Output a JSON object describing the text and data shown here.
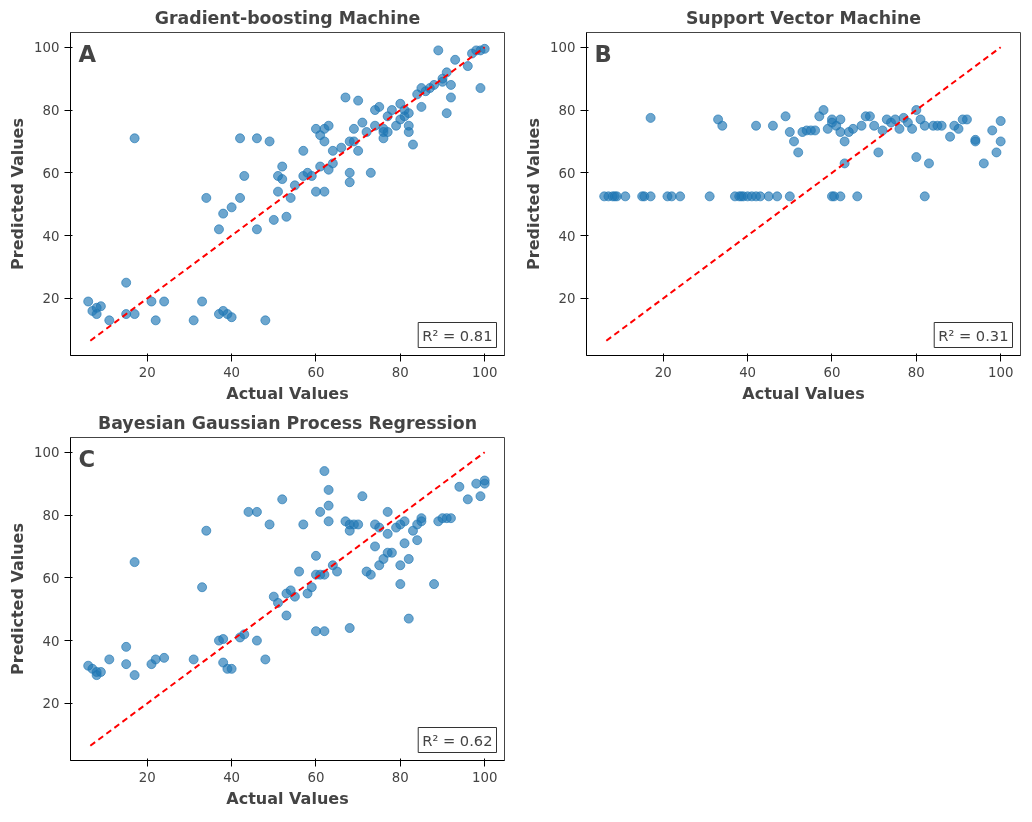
{
  "chart_data": [
    {
      "type": "scatter",
      "title": "Gradient-boosting Machine",
      "xlabel": "Actual Values",
      "ylabel": "Predicted Values",
      "xlim": [
        1.8,
        104.7
      ],
      "ylim": [
        1.8,
        104.7
      ],
      "xticks": [
        20,
        40,
        60,
        80,
        100
      ],
      "yticks": [
        20,
        40,
        60,
        80,
        100
      ],
      "grid": false,
      "annotations": [
        "A",
        "R² = 0.81"
      ],
      "series": [
        {
          "marker": "circle",
          "color": "#1f77b4",
          "x": [
            6,
            7,
            8,
            8,
            9,
            11,
            15,
            15,
            17,
            17,
            21,
            22,
            24,
            31,
            33,
            37,
            38,
            39,
            40,
            48,
            34,
            37,
            38,
            40,
            42,
            42,
            43,
            46,
            46,
            49,
            50,
            51,
            51,
            52,
            52,
            53,
            54,
            55,
            57,
            57,
            58,
            59,
            60,
            60,
            61,
            61,
            62,
            62,
            62,
            63,
            63,
            64,
            64,
            66,
            67,
            68,
            68,
            68,
            69,
            69,
            70,
            70,
            71,
            72,
            73,
            74,
            74,
            75,
            76,
            76,
            76,
            77,
            77,
            78,
            79,
            80,
            80,
            81,
            81,
            82,
            82,
            82,
            83,
            84,
            85,
            85,
            86,
            87,
            88,
            89,
            90,
            90,
            91,
            91,
            92,
            92,
            93,
            96,
            97,
            98,
            99,
            100,
            99
          ],
          "values": [
            19,
            16,
            15,
            17,
            17.5,
            13,
            15,
            25,
            15,
            71,
            19,
            13,
            19,
            13,
            19,
            15,
            16,
            15,
            14,
            13,
            52,
            42,
            47,
            49,
            52,
            71,
            59,
            71,
            42,
            70,
            45,
            54,
            59,
            62,
            58,
            46,
            52,
            56,
            67,
            59,
            60,
            59,
            54,
            74,
            62,
            72,
            74,
            70,
            54,
            61,
            75,
            67,
            63,
            68,
            84,
            70,
            60,
            57,
            70,
            74,
            83,
            67,
            76,
            73,
            60,
            75,
            80,
            81,
            73,
            74,
            71,
            78,
            73,
            80,
            75,
            82,
            77,
            80,
            78,
            79,
            75,
            73,
            69,
            85,
            81,
            87,
            86,
            87,
            88,
            99,
            89,
            90,
            92,
            79,
            88,
            84,
            96,
            94,
            98,
            99,
            87,
            99.5,
            99
          ]
        },
        {
          "type": "line",
          "color": "#ff0000",
          "line_style": "dashed",
          "x": [
            6.5,
            100
          ],
          "values": [
            6.5,
            100
          ]
        }
      ]
    },
    {
      "type": "scatter",
      "title": "Support Vector Machine",
      "xlabel": "Actual Values",
      "ylabel": "Predicted Values",
      "xlim": [
        1.8,
        104.7
      ],
      "ylim": [
        1.8,
        104.7
      ],
      "xticks": [
        20,
        40,
        60,
        80,
        100
      ],
      "yticks": [
        20,
        40,
        60,
        80,
        100
      ],
      "grid": false,
      "annotations": [
        "B",
        "R² = 0.31"
      ],
      "series": [
        {
          "marker": "circle",
          "color": "#1f77b4",
          "x": [
            6,
            7,
            8,
            8.5,
            9,
            11,
            15,
            15.5,
            17,
            21,
            22,
            24,
            31,
            37,
            38,
            38.5,
            39,
            40,
            41,
            42,
            43,
            45,
            47,
            50,
            60,
            60.5,
            62,
            66,
            82,
            17,
            33,
            34,
            42,
            46,
            49,
            50,
            51,
            52,
            53,
            54,
            55,
            56,
            57,
            58,
            59,
            60,
            60,
            61,
            62,
            62,
            63,
            63,
            64,
            65,
            67,
            68,
            69,
            70,
            71,
            72,
            73,
            74,
            75,
            76,
            77,
            78,
            79,
            80,
            80,
            81,
            82,
            83,
            84,
            85,
            86,
            88,
            89,
            90,
            91,
            92,
            94,
            94,
            96,
            98,
            99,
            100,
            100
          ],
          "values": [
            52.5,
            52.5,
            52.5,
            52.5,
            52.5,
            52.5,
            52.5,
            52.5,
            52.5,
            52.5,
            52.5,
            52.5,
            52.5,
            52.5,
            52.5,
            52.5,
            52.5,
            52.5,
            52.5,
            52.5,
            52.5,
            52.5,
            52.5,
            52.5,
            52.5,
            52.5,
            52.5,
            52.5,
            52.5,
            77.5,
            77,
            75,
            75,
            75,
            78,
            73,
            70,
            66.5,
            73,
            73.5,
            73.5,
            73.5,
            78,
            80,
            74,
            77,
            76,
            75,
            77,
            73,
            70,
            63,
            73,
            74,
            75,
            78,
            78,
            75,
            66.5,
            73.5,
            77,
            76,
            77,
            74,
            77.5,
            76,
            74,
            80,
            65,
            77,
            75,
            63,
            75,
            75,
            75,
            71.5,
            75,
            74,
            77,
            77,
            70,
            70.5,
            63,
            73.5,
            66.5,
            76.5,
            70
          ]
        },
        {
          "type": "line",
          "color": "#ff0000",
          "line_style": "dashed",
          "x": [
            6.5,
            100
          ],
          "values": [
            6.5,
            100
          ]
        }
      ]
    },
    {
      "type": "scatter",
      "title": "Bayesian Gaussian Process Regression",
      "xlabel": "Actual Values",
      "ylabel": "Predicted Values",
      "xlim": [
        1.8,
        104.7
      ],
      "ylim": [
        1.8,
        104.7
      ],
      "xticks": [
        20,
        40,
        60,
        80,
        100
      ],
      "yticks": [
        20,
        40,
        60,
        80,
        100
      ],
      "grid": false,
      "annotations": [
        "C",
        "R² = 0.62"
      ],
      "series": [
        {
          "marker": "circle",
          "color": "#1f77b4",
          "x": [
            6,
            7,
            8,
            8,
            9,
            11,
            15,
            15,
            17,
            17,
            21,
            22,
            24,
            31,
            33,
            34,
            37,
            38,
            38,
            39,
            40,
            42,
            43,
            44,
            46,
            46,
            48,
            49,
            50,
            51,
            52,
            53,
            53,
            54,
            55,
            56,
            57,
            58,
            59,
            60,
            60,
            60,
            61,
            61,
            62,
            62,
            62,
            63,
            63,
            63,
            64,
            65,
            67,
            68,
            68,
            68,
            69,
            70,
            71,
            72,
            73,
            74,
            74,
            75,
            75,
            76,
            77,
            77,
            77,
            78,
            79,
            80,
            80,
            80,
            81,
            81,
            82,
            82,
            83,
            84,
            84,
            85,
            85,
            88,
            89,
            90,
            91,
            92,
            94,
            96,
            98,
            99,
            100,
            100
          ],
          "values": [
            32,
            31,
            29,
            30,
            30,
            34,
            32.5,
            38,
            65,
            29,
            32.5,
            34,
            34.5,
            34,
            57,
            75,
            40,
            40.5,
            33,
            31,
            31,
            41,
            42,
            81,
            40,
            81,
            34,
            77,
            54,
            52,
            85,
            55,
            48,
            56,
            54,
            62,
            77,
            55,
            57,
            61,
            67,
            43,
            61,
            81,
            43,
            61,
            94,
            88,
            83,
            78,
            64,
            62,
            78,
            44,
            75,
            77,
            77,
            77,
            86,
            62,
            61,
            70,
            77,
            76,
            64,
            66,
            81,
            68,
            74,
            68,
            76,
            64,
            58,
            77,
            71,
            78,
            66,
            47,
            75,
            77,
            72,
            79,
            78,
            58,
            78,
            79,
            79,
            79,
            89,
            85,
            90,
            86,
            91,
            90
          ]
        },
        {
          "type": "line",
          "color": "#ff0000",
          "line_style": "dashed",
          "x": [
            6.5,
            100
          ],
          "values": [
            6.5,
            100
          ]
        }
      ]
    }
  ]
}
